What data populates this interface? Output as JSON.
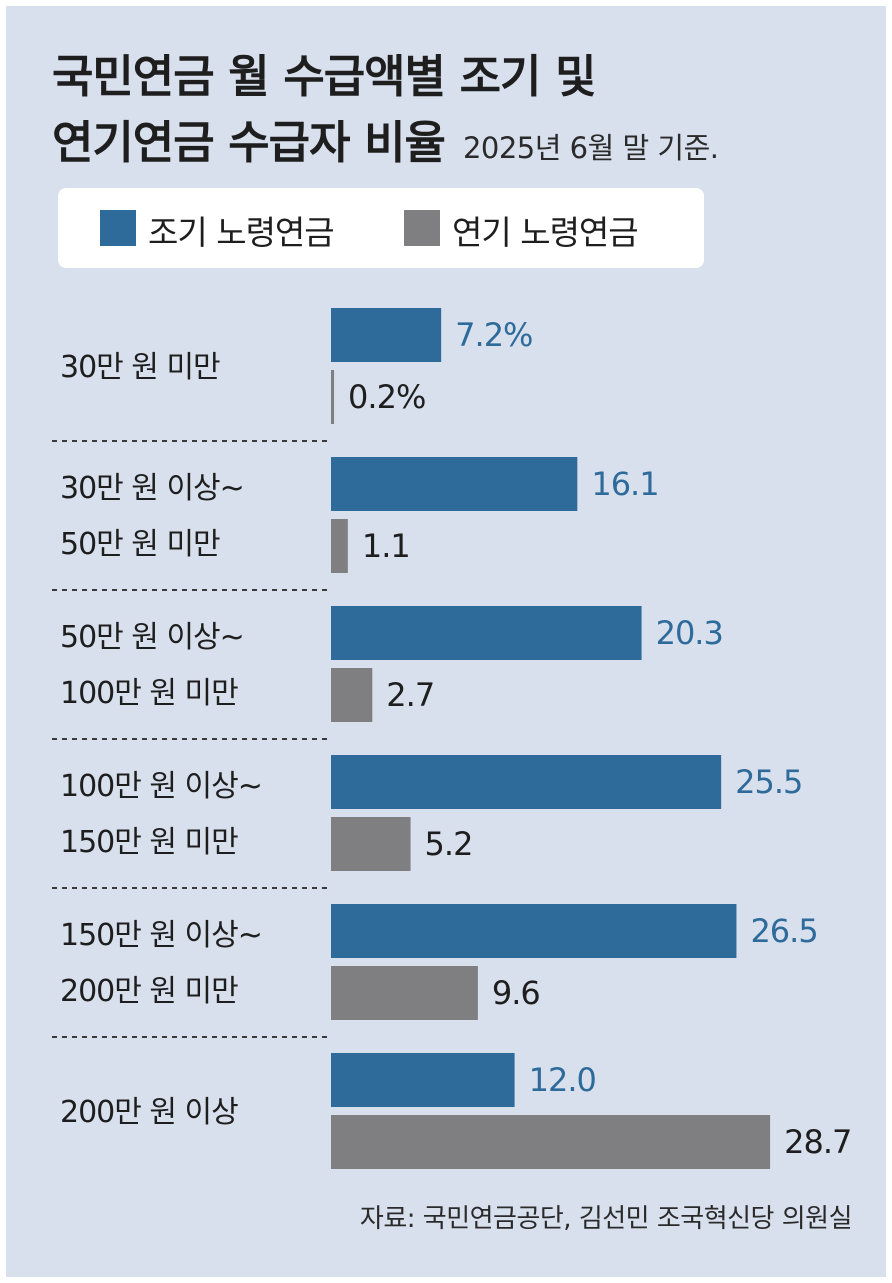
{
  "title": {
    "line1": "국민연금 월 수급액별 조기 및",
    "line2": "연기연금 수급자 비율",
    "subtitle": "2025년 6월 말 기준."
  },
  "source": "자료: 국민연금공단, 김선민 조국혁신당 의원실",
  "colors": {
    "background": "#d9e0ed",
    "early": "#2e6b9b",
    "deferred": "#7f7f82",
    "early_label": "#2e6b9b",
    "deferred_label": "#1e1e1e"
  },
  "chart_data": {
    "type": "bar",
    "orientation": "horizontal",
    "title": "국민연금 월 수급액별 조기 및 연기연금 수급자 비율",
    "subtitle": "2025년 6월 말 기준.",
    "unit": "%",
    "legend_position": "top-left",
    "grid": false,
    "xlim": [
      0,
      35
    ],
    "categories": [
      [
        "30만 원 미만"
      ],
      [
        "30만 원 이상~",
        "50만 원 미만"
      ],
      [
        "50만 원 이상~",
        "100만 원 미만"
      ],
      [
        "100만 원 이상~",
        "150만 원 미만"
      ],
      [
        "150만 원 이상~",
        "200만 원 미만"
      ],
      [
        "200만 원 이상"
      ]
    ],
    "series": [
      {
        "name": "조기 노령연금",
        "values": [
          7.2,
          16.1,
          20.3,
          25.5,
          26.5,
          12.0
        ],
        "labels": [
          "7.2%",
          "16.1",
          "20.3",
          "25.5",
          "26.5",
          "12.0"
        ]
      },
      {
        "name": "연기 노령연금",
        "values": [
          0.2,
          1.1,
          2.7,
          5.2,
          9.6,
          28.7
        ],
        "labels": [
          "0.2%",
          "1.1",
          "2.7",
          "5.2",
          "9.6",
          "28.7"
        ]
      }
    ]
  }
}
